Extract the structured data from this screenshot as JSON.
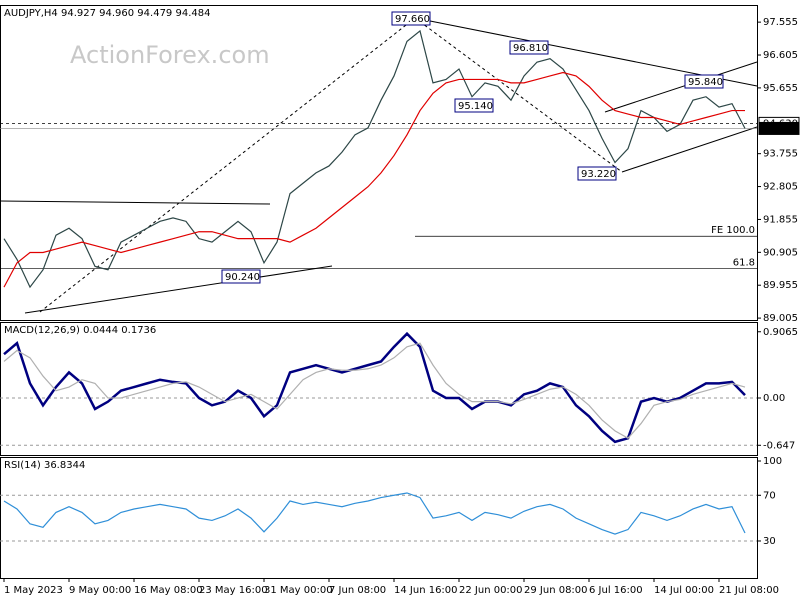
{
  "chart_data": [
    {
      "type": "line",
      "title": "AUDJPY,H4  94.927 94.960 94.479 94.484",
      "watermark": "ActionForex.com",
      "ylim": [
        88.95,
        98.05
      ],
      "yticks": [
        97.555,
        96.605,
        95.655,
        93.755,
        92.805,
        91.855,
        90.905,
        89.955,
        89.005
      ],
      "series": [
        {
          "name": "AUDJPY",
          "color": "#2d4747",
          "values": [
            91.3,
            90.7,
            89.9,
            90.4,
            91.4,
            91.6,
            91.3,
            90.5,
            90.4,
            91.2,
            91.4,
            91.6,
            91.8,
            91.9,
            91.8,
            91.3,
            91.2,
            91.5,
            91.8,
            91.5,
            90.6,
            91.2,
            92.6,
            92.9,
            93.2,
            93.4,
            93.8,
            94.3,
            94.5,
            95.3,
            96.0,
            97.0,
            97.3,
            95.8,
            95.9,
            96.2,
            95.4,
            95.8,
            95.7,
            95.3,
            96.0,
            96.4,
            96.5,
            96.2,
            95.6,
            95.0,
            94.2,
            93.5,
            93.9,
            95.0,
            94.8,
            94.4,
            94.6,
            95.3,
            95.4,
            95.1,
            95.2,
            94.484
          ]
        },
        {
          "name": "MA",
          "color": "#e00000",
          "values": [
            89.9,
            90.6,
            90.9,
            90.9,
            91.0,
            91.1,
            91.2,
            91.1,
            91.0,
            90.9,
            91.0,
            91.1,
            91.2,
            91.3,
            91.4,
            91.5,
            91.5,
            91.4,
            91.3,
            91.3,
            91.3,
            91.3,
            91.2,
            91.4,
            91.6,
            91.9,
            92.2,
            92.5,
            92.8,
            93.2,
            93.7,
            94.3,
            95.0,
            95.5,
            95.8,
            95.9,
            95.9,
            95.9,
            95.9,
            95.8,
            95.8,
            95.9,
            96.0,
            96.1,
            96.0,
            95.7,
            95.3,
            95.0,
            94.9,
            94.8,
            94.8,
            94.7,
            94.6,
            94.7,
            94.8,
            94.9,
            95.0,
            95.0
          ]
        }
      ],
      "annotations": [
        {
          "value": 97.66,
          "label": "97.660"
        },
        {
          "value": 96.81,
          "label": "96.810"
        },
        {
          "value": 95.14,
          "label": "95.140"
        },
        {
          "value": 93.22,
          "label": "93.220"
        },
        {
          "value": 95.84,
          "label": "95.840"
        },
        {
          "value": 90.24,
          "label": "90.240"
        }
      ],
      "levels": [
        {
          "value": 91.37,
          "label": "FE 100.0"
        },
        {
          "value": 90.44,
          "label": "61.8"
        }
      ],
      "price_marks": [
        {
          "value": 94.63,
          "label": "94.630"
        },
        {
          "value": 94.484,
          "label": "94.484"
        }
      ]
    },
    {
      "type": "line",
      "title": "MACD(12,26,9) 0.0444 0.1736",
      "ylim": [
        -0.78,
        1.04
      ],
      "yticks": [
        0.9065,
        {
          "value": 0,
          "label": "0.00"
        },
        -0.647
      ],
      "grid": true,
      "series": [
        {
          "name": "MACD",
          "color": "#000080",
          "values": [
            0.6,
            0.75,
            0.2,
            -0.1,
            0.15,
            0.35,
            0.2,
            -0.15,
            -0.05,
            0.1,
            0.15,
            0.2,
            0.25,
            0.22,
            0.2,
            0.0,
            -0.1,
            -0.05,
            0.1,
            0.0,
            -0.25,
            -0.1,
            0.35,
            0.4,
            0.45,
            0.4,
            0.35,
            0.4,
            0.45,
            0.5,
            0.7,
            0.88,
            0.7,
            0.1,
            0.0,
            0.0,
            -0.15,
            -0.05,
            -0.05,
            -0.1,
            0.05,
            0.1,
            0.2,
            0.15,
            -0.1,
            -0.25,
            -0.45,
            -0.6,
            -0.55,
            -0.05,
            0.0,
            -0.05,
            0.0,
            0.1,
            0.2,
            0.2,
            0.22,
            0.04
          ]
        },
        {
          "name": "Signal",
          "color": "#b0b0b0",
          "values": [
            0.5,
            0.65,
            0.55,
            0.3,
            0.1,
            0.15,
            0.25,
            0.2,
            0.0,
            0.0,
            0.05,
            0.1,
            0.15,
            0.2,
            0.22,
            0.15,
            0.05,
            -0.05,
            0.0,
            0.05,
            -0.05,
            -0.15,
            0.05,
            0.25,
            0.35,
            0.4,
            0.38,
            0.38,
            0.4,
            0.45,
            0.55,
            0.7,
            0.75,
            0.45,
            0.2,
            0.05,
            -0.05,
            -0.05,
            -0.05,
            -0.08,
            -0.02,
            0.05,
            0.12,
            0.15,
            0.05,
            -0.1,
            -0.3,
            -0.45,
            -0.55,
            -0.35,
            -0.1,
            -0.05,
            -0.02,
            0.05,
            0.1,
            0.15,
            0.2,
            0.15
          ]
        }
      ]
    },
    {
      "type": "line",
      "title": "RSI(14) 36.8344",
      "ylim": [
        -2.4,
        103.5
      ],
      "yticks": [
        100,
        70,
        30
      ],
      "grid": true,
      "categories": [
        "1 May 2023",
        null,
        null,
        null,
        null,
        "9 May 00:00",
        null,
        null,
        null,
        null,
        "16 May 08:00",
        null,
        null,
        null,
        null,
        "23 May 16:00",
        null,
        null,
        null,
        null,
        "31 May 00:00",
        null,
        null,
        null,
        null,
        "7 Jun 08:00",
        null,
        null,
        null,
        null,
        "14 Jun 16:00",
        null,
        null,
        null,
        null,
        "22 Jun 00:00",
        null,
        null,
        null,
        null,
        "29 Jun 08:00",
        null,
        null,
        null,
        null,
        "6 Jul 16:00",
        null,
        null,
        null,
        null,
        "14 Jul 00:00",
        null,
        null,
        null,
        null,
        "21 Jul 08:00",
        null,
        null
      ],
      "series": [
        {
          "name": "RSI",
          "color": "#2f8fd8",
          "values": [
            65,
            58,
            45,
            42,
            55,
            60,
            55,
            45,
            48,
            55,
            58,
            60,
            62,
            60,
            58,
            50,
            48,
            52,
            58,
            50,
            38,
            50,
            65,
            62,
            64,
            62,
            60,
            63,
            65,
            68,
            70,
            72,
            68,
            50,
            52,
            55,
            48,
            55,
            53,
            50,
            56,
            60,
            62,
            58,
            50,
            45,
            40,
            36,
            40,
            55,
            52,
            48,
            52,
            58,
            62,
            58,
            60,
            37
          ]
        }
      ]
    }
  ]
}
